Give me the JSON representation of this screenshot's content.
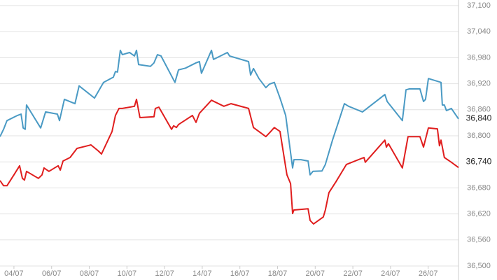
{
  "chart_data": {
    "type": "line",
    "xlim": [
      3.26,
      27.61
    ],
    "xticks": [
      {
        "value": 4,
        "label": "04/07"
      },
      {
        "value": 6,
        "label": "06/07"
      },
      {
        "value": 8,
        "label": "08/07"
      },
      {
        "value": 10,
        "label": "10/07"
      },
      {
        "value": 12,
        "label": "12/07"
      },
      {
        "value": 14,
        "label": "14/07"
      },
      {
        "value": 16,
        "label": "16/07"
      },
      {
        "value": 18,
        "label": "18/07"
      },
      {
        "value": 20,
        "label": "20/07"
      },
      {
        "value": 22,
        "label": "22/07"
      },
      {
        "value": 24,
        "label": "24/07"
      },
      {
        "value": 26,
        "label": "26/07"
      }
    ],
    "ylim": [
      36500,
      37100
    ],
    "yticks": [
      {
        "value": 36500,
        "label": "36,500"
      },
      {
        "value": 36560,
        "label": "36,560"
      },
      {
        "value": 36620,
        "label": "36,620"
      },
      {
        "value": 36680,
        "label": "36,680"
      },
      {
        "value": 36740,
        "label": "36,740"
      },
      {
        "value": 36800,
        "label": "36,800"
      },
      {
        "value": 36860,
        "label": "36,860"
      },
      {
        "value": 36920,
        "label": "36,920"
      },
      {
        "value": 36980,
        "label": "36,980"
      },
      {
        "value": 37040,
        "label": "37,040"
      },
      {
        "value": 37100,
        "label": "37,100"
      }
    ],
    "grid": "y",
    "annotations": [
      {
        "value": 36840,
        "label": "36,840"
      },
      {
        "value": 36740,
        "label": "36,740"
      }
    ],
    "series": [
      {
        "color": "#4a9ac4",
        "x": [
          3.26,
          3.45,
          3.63,
          4.19,
          4.38,
          4.49,
          4.6,
          4.67,
          5.42,
          5.68,
          6.31,
          6.42,
          6.68,
          7.24,
          7.46,
          8.28,
          8.76,
          9.28,
          9.39,
          9.5,
          9.65,
          9.76,
          10.14,
          10.4,
          10.51,
          10.62,
          11.25,
          11.44,
          11.62,
          11.81,
          12.55,
          12.74,
          13.11,
          13.67,
          13.85,
          13.96,
          14.49,
          14.6,
          15.34,
          15.45,
          16.46,
          16.57,
          16.72,
          17.01,
          17.38,
          17.57,
          17.83,
          18.13,
          18.43,
          18.8,
          18.87,
          19.24,
          19.62,
          19.73,
          19.88,
          20.36,
          20.54,
          20.92,
          21.29,
          21.55,
          21.77,
          22.51,
          23.7,
          23.82,
          24.63,
          24.82,
          25.0,
          25.56,
          25.75,
          25.86,
          26.01,
          26.68,
          26.75,
          26.86,
          26.97,
          27.23,
          27.61
        ],
        "values": [
          36798,
          36815,
          36835,
          36847,
          36850,
          36818,
          36815,
          36871,
          36818,
          36855,
          36850,
          36835,
          36884,
          36874,
          36915,
          36887,
          36923,
          36935,
          36948,
          36947,
          36997,
          36987,
          36992,
          36984,
          36997,
          36964,
          36960,
          36968,
          36987,
          36984,
          36923,
          36952,
          36956,
          36968,
          36971,
          36944,
          36997,
          36976,
          36992,
          36984,
          36971,
          36940,
          36955,
          36932,
          36911,
          36919,
          36923,
          36887,
          36847,
          36726,
          36745,
          36745,
          36742,
          36710,
          36718,
          36719,
          36734,
          36790,
          36839,
          36874,
          36868,
          36855,
          36895,
          36879,
          36835,
          36906,
          36908,
          36908,
          36879,
          36884,
          36932,
          36923,
          36871,
          36871,
          36858,
          36863,
          36839
        ]
      },
      {
        "color": "#e01e1e",
        "x": [
          3.26,
          3.45,
          3.63,
          4.0,
          4.3,
          4.45,
          4.56,
          4.67,
          5.3,
          5.49,
          5.6,
          5.86,
          6.35,
          6.46,
          6.61,
          6.98,
          7.35,
          8.09,
          8.46,
          8.65,
          9.21,
          9.39,
          9.58,
          9.76,
          10.14,
          10.4,
          10.51,
          10.69,
          11.44,
          11.51,
          11.7,
          12.37,
          12.48,
          12.63,
          12.74,
          13.48,
          13.67,
          13.85,
          14.49,
          15.15,
          15.53,
          16.46,
          16.72,
          17.38,
          17.64,
          17.83,
          18.13,
          18.5,
          18.69,
          18.8,
          18.87,
          19.62,
          19.73,
          19.91,
          20.43,
          20.54,
          20.73,
          21.1,
          21.66,
          22.59,
          22.66,
          23.7,
          23.78,
          23.89,
          24.63,
          24.93,
          25.56,
          25.75,
          26.01,
          26.49,
          26.6,
          26.68,
          26.86,
          27.23,
          27.61
        ],
        "values": [
          36697,
          36685,
          36685,
          36710,
          36731,
          36702,
          36698,
          36718,
          36702,
          36710,
          36726,
          36718,
          36731,
          36721,
          36742,
          36750,
          36771,
          36779,
          36766,
          36758,
          36810,
          36847,
          36863,
          36863,
          36866,
          36868,
          36884,
          36842,
          36844,
          36863,
          36866,
          36815,
          36823,
          36819,
          36826,
          36847,
          36831,
          36852,
          36882,
          36868,
          36874,
          36863,
          36819,
          36798,
          36810,
          36819,
          36810,
          36710,
          36690,
          36621,
          36629,
          36632,
          36605,
          36597,
          36613,
          36629,
          36669,
          36694,
          36734,
          36750,
          36739,
          36790,
          36774,
          36782,
          36726,
          36798,
          36798,
          36774,
          36818,
          36816,
          36777,
          36790,
          36750,
          36739,
          36727
        ]
      }
    ]
  }
}
